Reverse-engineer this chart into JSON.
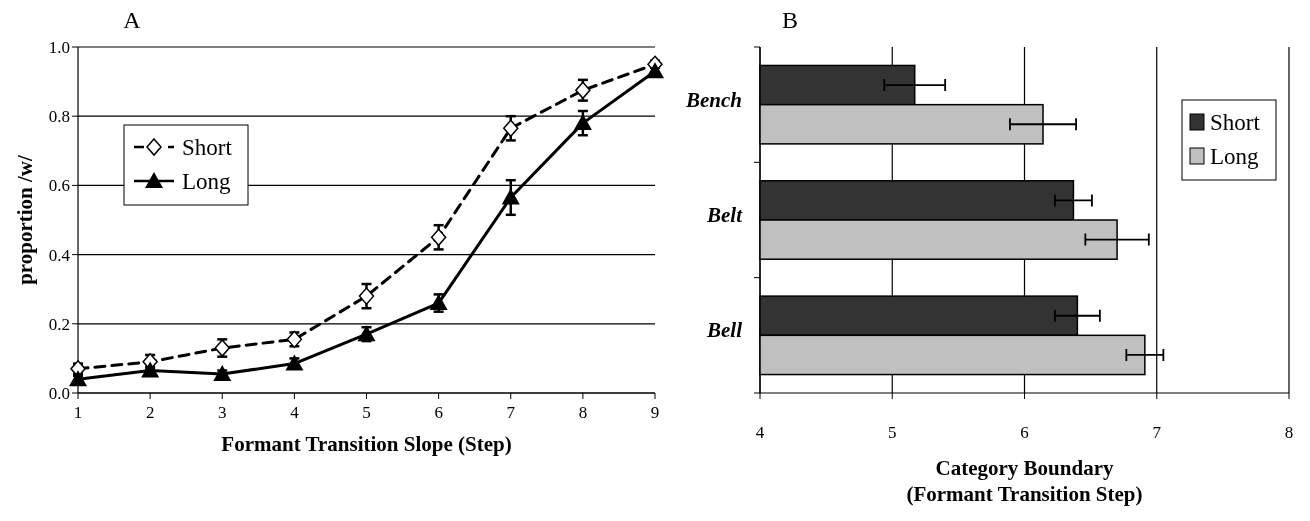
{
  "chart_data": [
    {
      "type": "line",
      "title": "A",
      "xlabel": "Formant Transition Slope (Step)",
      "ylabel": "proportion /w/",
      "x": [
        1,
        2,
        3,
        4,
        5,
        6,
        7,
        8,
        9
      ],
      "series": [
        {
          "name": "Short",
          "color": "#000000",
          "marker": "diamond",
          "line_style": "dashed",
          "values": [
            0.07,
            0.09,
            0.13,
            0.155,
            0.28,
            0.45,
            0.765,
            0.875,
            0.95
          ],
          "errors": [
            0.015,
            0.02,
            0.025,
            0.02,
            0.035,
            0.035,
            0.035,
            0.03,
            0.01
          ]
        },
        {
          "name": "Long",
          "color": "#000000",
          "marker": "triangle",
          "line_style": "solid",
          "values": [
            0.04,
            0.065,
            0.055,
            0.085,
            0.17,
            0.26,
            0.565,
            0.78,
            0.93
          ],
          "errors": [
            0.01,
            0.01,
            0.01,
            0.015,
            0.02,
            0.025,
            0.05,
            0.035,
            0.01
          ]
        }
      ],
      "xlim": [
        1,
        9
      ],
      "xticks": [
        1,
        2,
        3,
        4,
        5,
        6,
        7,
        8,
        9
      ],
      "ylim": [
        0,
        1
      ],
      "yticks": [
        {
          "value": 0,
          "label": "0.0"
        },
        {
          "value": 0.2,
          "label": "0.2"
        },
        {
          "value": 0.4,
          "label": "0.4"
        },
        {
          "value": 0.6,
          "label": "0.6"
        },
        {
          "value": 0.8,
          "label": "0.8"
        },
        {
          "value": 1,
          "label": "1.0"
        }
      ],
      "grid": "y",
      "legend": "top left"
    },
    {
      "type": "bar",
      "orientation": "horizontal",
      "title": "B",
      "xlabel": "Category Boundary\n(Formant Transition Step)",
      "categories": [
        "Bench",
        "Belt",
        "Bell"
      ],
      "series": [
        {
          "name": "Short",
          "color": "#333333",
          "values": [
            5.17,
            6.37,
            6.4
          ],
          "errors": [
            0.23,
            0.14,
            0.17
          ]
        },
        {
          "name": "Long",
          "color": "#c0c0c0",
          "values": [
            6.14,
            6.7,
            6.91
          ],
          "errors": [
            0.25,
            0.24,
            0.14
          ]
        }
      ],
      "xlim": [
        4,
        8
      ],
      "xticks": [
        4,
        5,
        6,
        7,
        8
      ],
      "grid": "x",
      "legend": "top right"
    }
  ]
}
